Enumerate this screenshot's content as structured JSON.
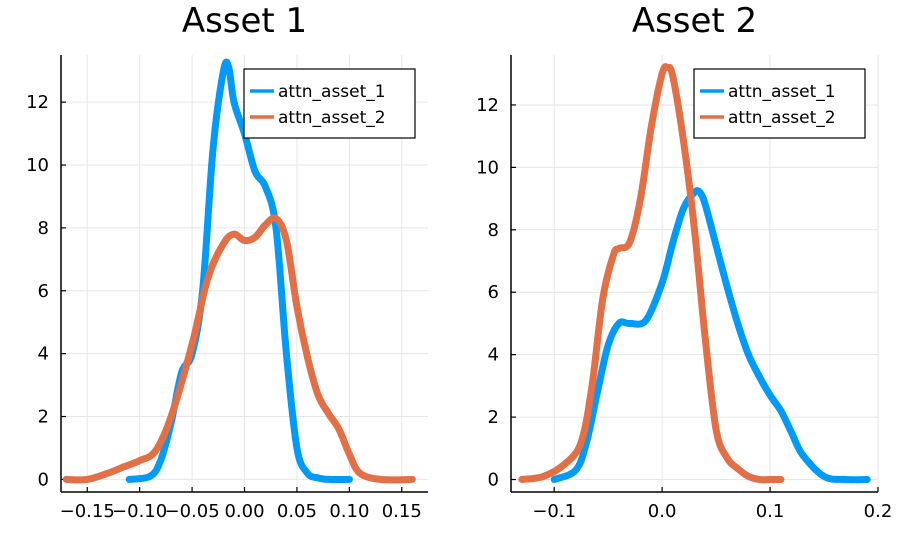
{
  "chart_data": [
    {
      "type": "line",
      "title": "Asset 1",
      "xlabel": "",
      "ylabel": "",
      "xlim": [
        -0.175,
        0.175
      ],
      "ylim": [
        -0.4,
        13.5
      ],
      "xticks": [
        -0.15,
        -0.1,
        -0.05,
        0.0,
        0.05,
        0.1,
        0.15
      ],
      "xtick_labels": [
        "−0.15",
        "−0.10",
        "−0.05",
        "0.00",
        "0.05",
        "0.10",
        "0.15"
      ],
      "yticks": [
        0,
        2,
        4,
        6,
        8,
        10,
        12
      ],
      "ytick_labels": [
        "0",
        "2",
        "4",
        "6",
        "8",
        "10",
        "12"
      ],
      "grid": true,
      "legend": "top-right",
      "series": [
        {
          "name": "attn_asset_1",
          "color": "#009af9",
          "x": [
            -0.11,
            -0.09,
            -0.08,
            -0.07,
            -0.06,
            -0.05,
            -0.04,
            -0.03,
            -0.02,
            -0.015,
            -0.01,
            0.0,
            0.01,
            0.02,
            0.03,
            0.04,
            0.05,
            0.06,
            0.07,
            0.08,
            0.1
          ],
          "y": [
            0.0,
            0.1,
            0.6,
            1.8,
            3.4,
            4.0,
            6.0,
            10.5,
            13.0,
            13.1,
            12.0,
            11.0,
            9.8,
            9.3,
            8.0,
            4.0,
            1.0,
            0.2,
            0.05,
            0.0,
            0.0
          ]
        },
        {
          "name": "attn_asset_2",
          "color": "#e26f46",
          "x": [
            -0.17,
            -0.15,
            -0.13,
            -0.115,
            -0.1,
            -0.085,
            -0.07,
            -0.05,
            -0.035,
            -0.02,
            -0.01,
            0.0,
            0.01,
            0.02,
            0.03,
            0.04,
            0.05,
            0.06,
            0.07,
            0.08,
            0.09,
            0.1,
            0.11,
            0.13,
            0.16
          ],
          "y": [
            0.0,
            0.0,
            0.2,
            0.4,
            0.6,
            0.9,
            2.0,
            4.3,
            6.4,
            7.5,
            7.8,
            7.6,
            7.7,
            8.1,
            8.3,
            7.6,
            5.5,
            3.9,
            2.7,
            2.1,
            1.6,
            0.8,
            0.2,
            0.0,
            0.0
          ]
        }
      ]
    },
    {
      "type": "line",
      "title": "Asset 2",
      "xlabel": "",
      "ylabel": "",
      "xlim": [
        -0.14,
        0.2
      ],
      "ylim": [
        -0.4,
        13.6
      ],
      "xticks": [
        -0.1,
        0.0,
        0.1,
        0.2
      ],
      "xtick_labels": [
        "−0.1",
        "0.0",
        "0.1",
        "0.2"
      ],
      "yticks": [
        0,
        2,
        4,
        6,
        8,
        10,
        12
      ],
      "ytick_labels": [
        "0",
        "2",
        "4",
        "6",
        "8",
        "10",
        "12"
      ],
      "grid": true,
      "legend": "top-right",
      "series": [
        {
          "name": "attn_asset_1",
          "color": "#009af9",
          "x": [
            -0.1,
            -0.08,
            -0.07,
            -0.06,
            -0.05,
            -0.04,
            -0.03,
            -0.015,
            0.0,
            0.01,
            0.02,
            0.03,
            0.035,
            0.04,
            0.05,
            0.06,
            0.07,
            0.08,
            0.09,
            0.1,
            0.11,
            0.12,
            0.13,
            0.15,
            0.17,
            0.19
          ],
          "y": [
            0.0,
            0.3,
            1.2,
            2.8,
            4.3,
            5.0,
            5.0,
            5.1,
            6.3,
            7.6,
            8.7,
            9.2,
            9.2,
            8.8,
            7.5,
            6.2,
            5.0,
            4.0,
            3.3,
            2.7,
            2.2,
            1.5,
            0.8,
            0.1,
            0.0,
            0.0
          ]
        },
        {
          "name": "attn_asset_2",
          "color": "#e26f46",
          "x": [
            -0.13,
            -0.11,
            -0.09,
            -0.075,
            -0.065,
            -0.055,
            -0.045,
            -0.04,
            -0.03,
            -0.02,
            -0.01,
            0.0,
            0.005,
            0.01,
            0.02,
            0.03,
            0.04,
            0.05,
            0.06,
            0.07,
            0.08,
            0.09,
            0.1,
            0.11
          ],
          "y": [
            0.0,
            0.1,
            0.5,
            1.2,
            3.0,
            5.8,
            7.2,
            7.4,
            7.6,
            9.0,
            11.3,
            13.0,
            13.2,
            12.9,
            10.8,
            8.0,
            4.5,
            1.6,
            0.7,
            0.35,
            0.1,
            0.0,
            0.0,
            0.0
          ]
        }
      ]
    }
  ]
}
